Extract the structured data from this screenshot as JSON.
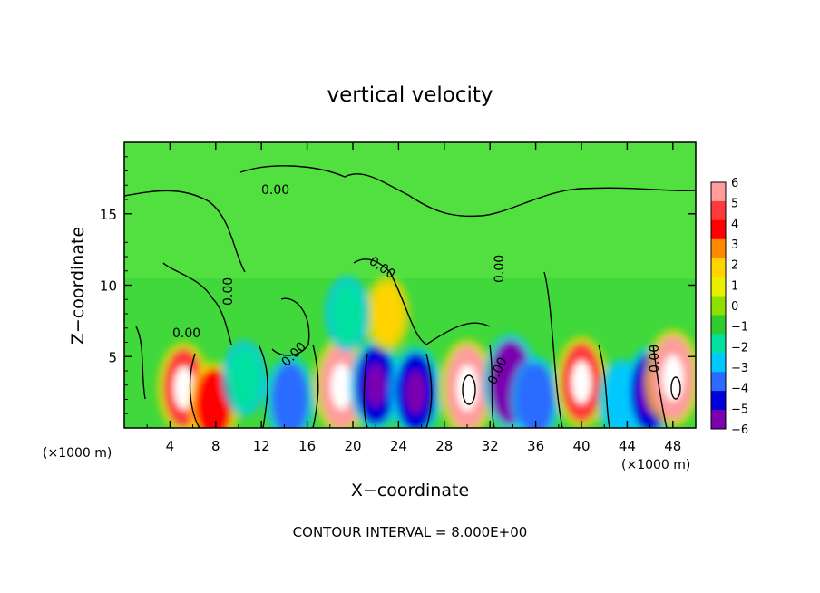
{
  "chart_data": {
    "type": "heatmap",
    "title": "vertical velocity",
    "xlabel": "X−coordinate",
    "ylabel": "Z−coordinate",
    "x_unit_left": "(×1000 m)",
    "x_unit_right": "(×1000 m)",
    "xlim": [
      0,
      50
    ],
    "ylim": [
      0,
      20
    ],
    "x_ticks": [
      4,
      8,
      12,
      16,
      20,
      24,
      28,
      32,
      36,
      40,
      44,
      48
    ],
    "y_ticks": [
      5,
      10,
      15
    ],
    "contour_label": "0.00",
    "footer": "CONTOUR INTERVAL = 8.000E+00",
    "colorbar": {
      "labels": [
        "6",
        "5",
        "4",
        "3",
        "2",
        "1",
        "0",
        "−1",
        "−2",
        "−3",
        "−4",
        "−5",
        "−6"
      ],
      "colors": [
        "#ff9c9c",
        "#ff3a3a",
        "#ff0000",
        "#ff8a00",
        "#ffd400",
        "#e8f000",
        "#8ee000",
        "#2ecc2e",
        "#00e0a0",
        "#00c8ff",
        "#2a6cff",
        "#0000d8",
        "#7a00b0"
      ]
    },
    "features": [
      {
        "x": 5.2,
        "z": 2.8,
        "value": 5
      },
      {
        "x": 7.8,
        "z": 1.6,
        "value": 4
      },
      {
        "x": 14.5,
        "z": 2.0,
        "value": -4
      },
      {
        "x": 19.0,
        "z": 2.9,
        "value": 6
      },
      {
        "x": 22.0,
        "z": 3.0,
        "value": -5
      },
      {
        "x": 23.0,
        "z": 8.0,
        "value": 2
      },
      {
        "x": 25.5,
        "z": 2.5,
        "value": -5
      },
      {
        "x": 30.0,
        "z": 2.8,
        "value": 6
      },
      {
        "x": 33.8,
        "z": 3.2,
        "value": -6
      },
      {
        "x": 36.0,
        "z": 2.0,
        "value": -4
      },
      {
        "x": 40.0,
        "z": 3.2,
        "value": 5
      },
      {
        "x": 43.5,
        "z": 2.0,
        "value": -3
      },
      {
        "x": 46.0,
        "z": 2.5,
        "value": -5
      },
      {
        "x": 48.0,
        "z": 3.5,
        "value": 6
      },
      {
        "x": 19.5,
        "z": 8.0,
        "value": -2
      },
      {
        "x": 10.5,
        "z": 3.5,
        "value": -2
      }
    ]
  }
}
